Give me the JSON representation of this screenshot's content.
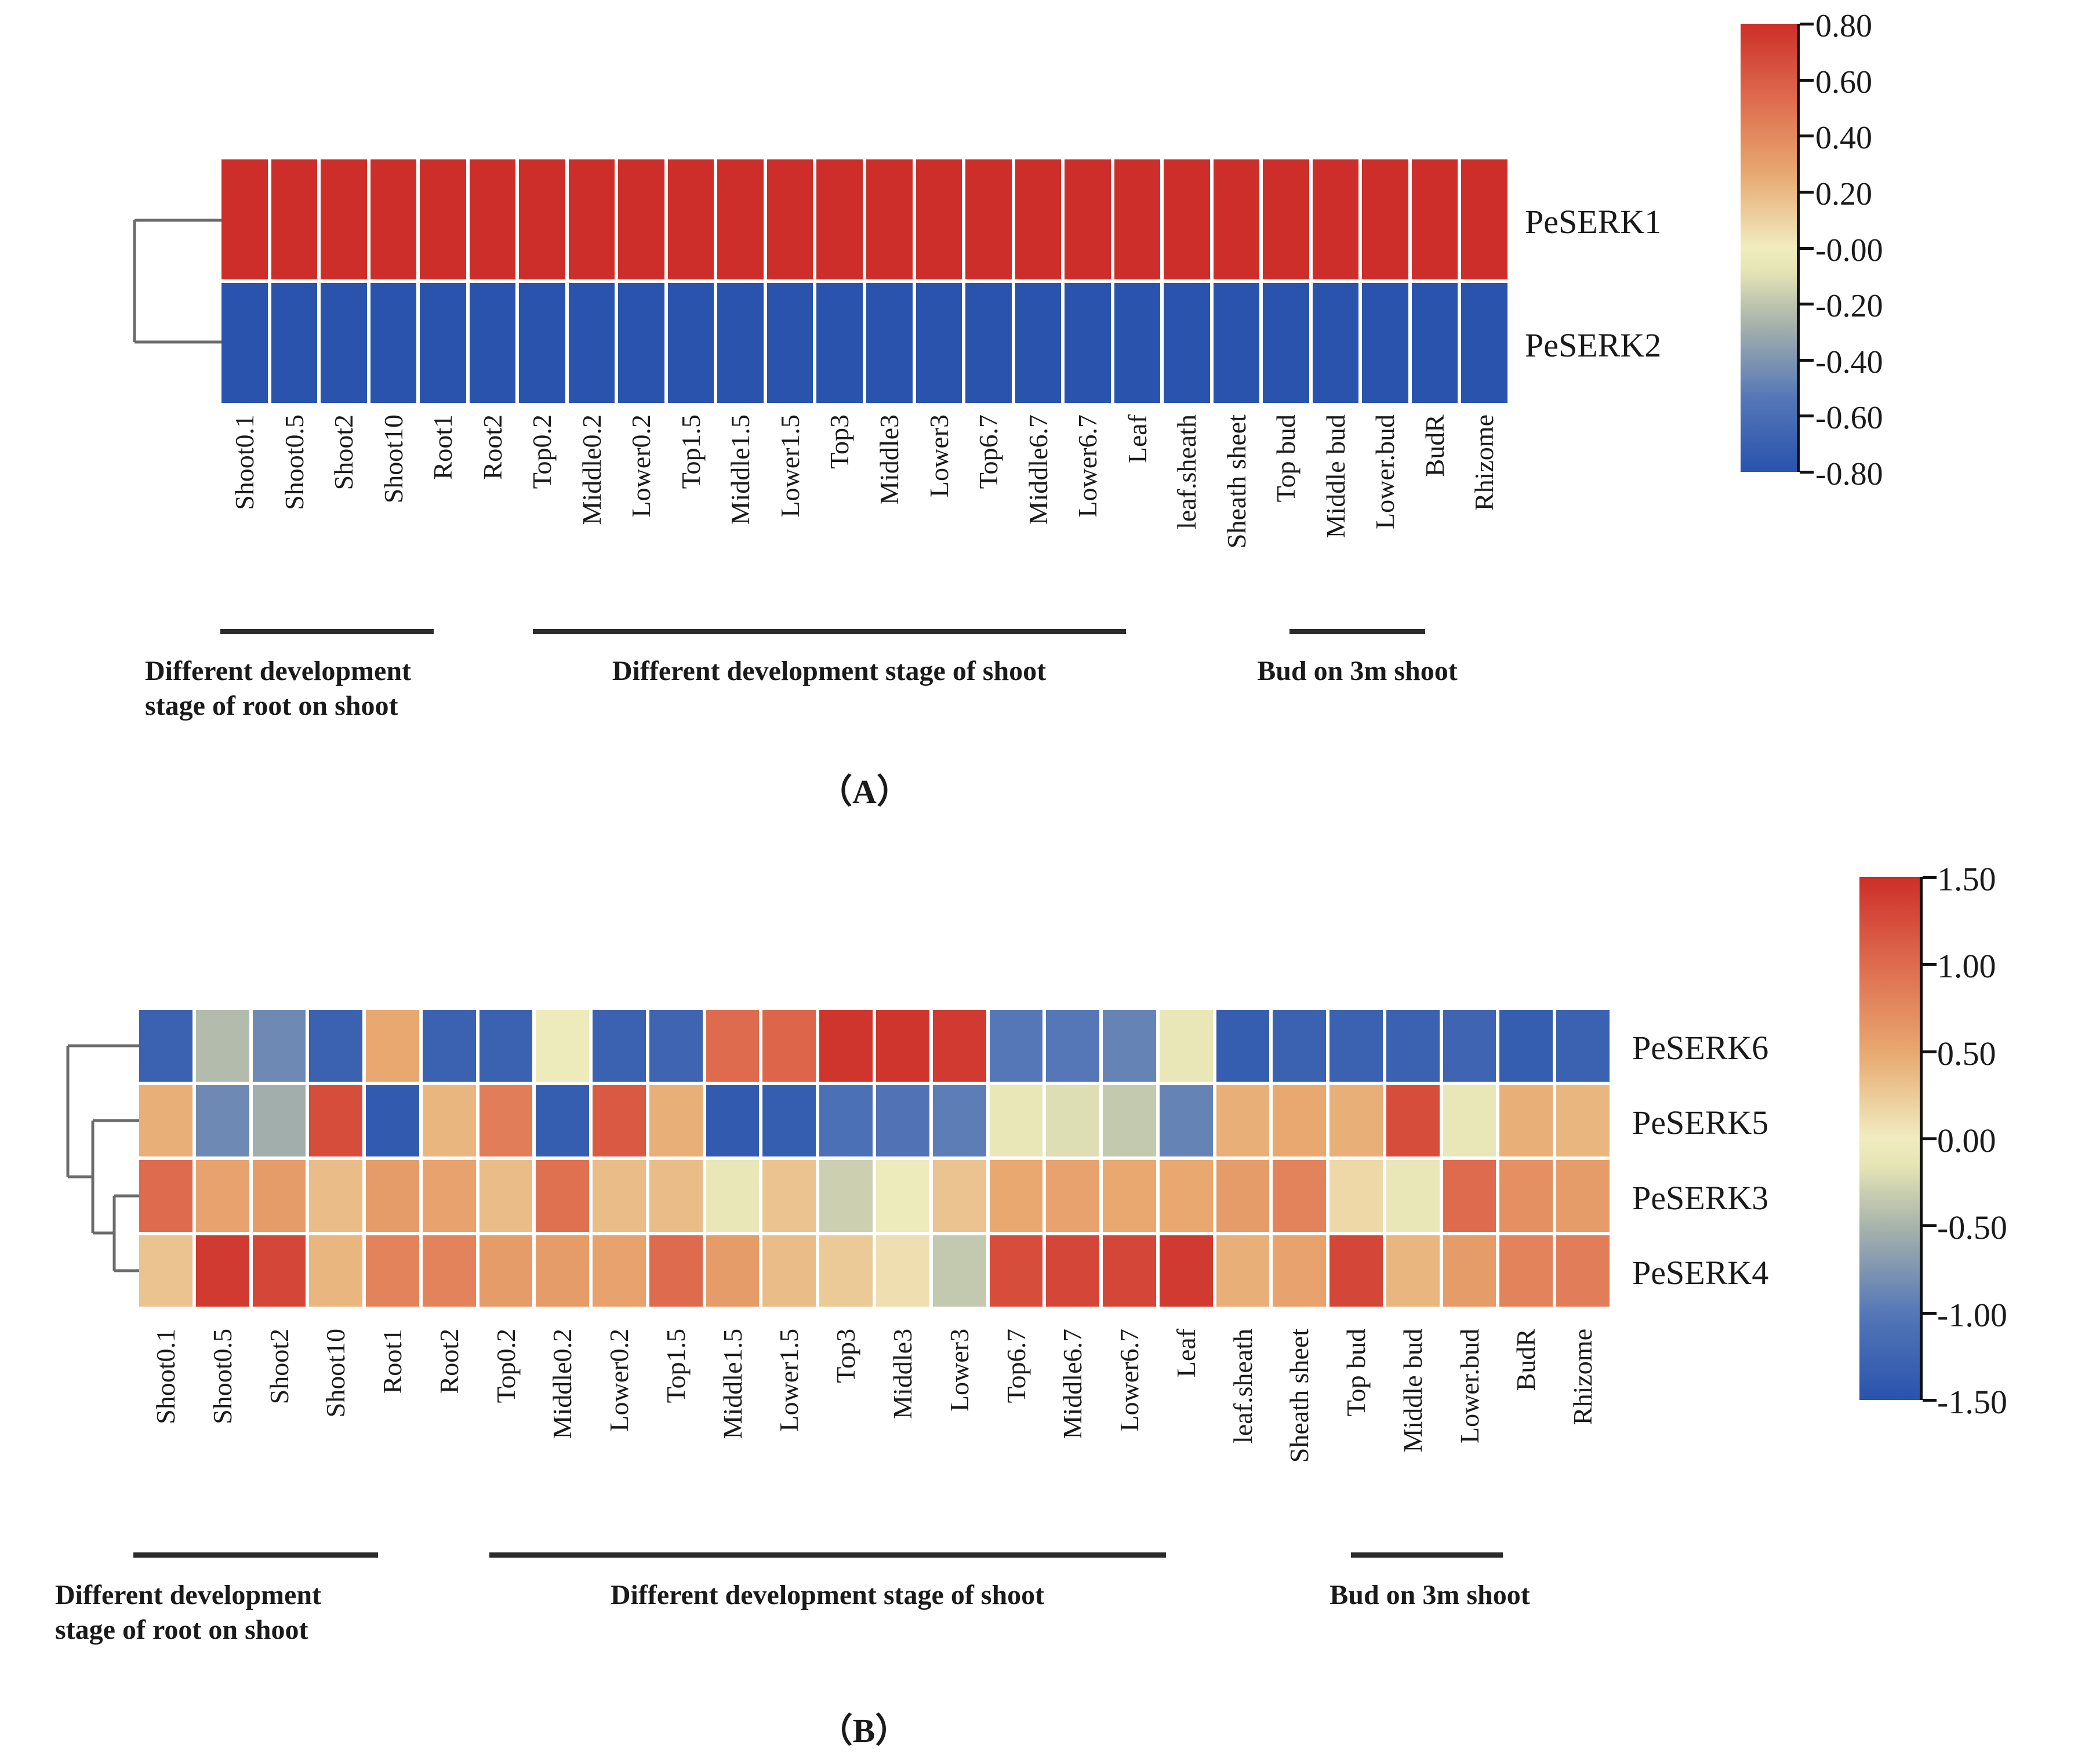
{
  "figure_title": "",
  "colormap": {
    "anchors": [
      {
        "t": -1.0,
        "c": "#2953ad"
      },
      {
        "t": -0.667,
        "c": "#5577b7"
      },
      {
        "t": -0.333,
        "c": "#a9b4ab"
      },
      {
        "t": -0.1,
        "c": "#e6e5b4"
      },
      {
        "t": 0.0,
        "c": "#f0ecc0"
      },
      {
        "t": 0.333,
        "c": "#e8a870"
      },
      {
        "t": 0.667,
        "c": "#de6b4e"
      },
      {
        "t": 1.0,
        "c": "#cd2e29"
      }
    ]
  },
  "chart_data": [
    {
      "id": "A",
      "type": "heatmap",
      "caption": "（A）",
      "rows": [
        "PeSERK1",
        "PeSERK2"
      ],
      "columns": [
        "Shoot0.1",
        "Shoot0.5",
        "Shoot2",
        "Shoot10",
        "Root1",
        "Root2",
        "Top0.2",
        "Middle0.2",
        "Lower0.2",
        "Top1.5",
        "Middle1.5",
        "Lower1.5",
        "Top3",
        "Middle3",
        "Lower3",
        "Top6.7",
        "Middle6.7",
        "Lower6.7",
        "Leaf",
        "leaf.sheath",
        "Sheath sheet",
        "Top bud",
        "Middle bud",
        "Lower.bud",
        "BudR",
        "Rhizome"
      ],
      "values": [
        [
          0.8,
          0.8,
          0.8,
          0.8,
          0.8,
          0.8,
          0.8,
          0.8,
          0.8,
          0.8,
          0.8,
          0.8,
          0.8,
          0.8,
          0.8,
          0.8,
          0.8,
          0.8,
          0.8,
          0.8,
          0.8,
          0.8,
          0.8,
          0.8,
          0.8,
          0.8
        ],
        [
          -0.8,
          -0.8,
          -0.8,
          -0.8,
          -0.8,
          -0.8,
          -0.8,
          -0.8,
          -0.8,
          -0.8,
          -0.8,
          -0.8,
          -0.8,
          -0.8,
          -0.8,
          -0.8,
          -0.8,
          -0.8,
          -0.8,
          -0.8,
          -0.8,
          -0.8,
          -0.8,
          -0.8,
          -0.8,
          -0.8
        ]
      ],
      "vmax": 0.8,
      "colorbar_ticks": [
        "0.80",
        "0.60",
        "0.40",
        "0.20",
        "-0.00",
        "-0.20",
        "-0.40",
        "-0.60",
        "-0.80"
      ],
      "clustering": "(PeSERK1,PeSERK2)",
      "groups": [
        {
          "label": "Different development\nstage of root on shoot"
        },
        {
          "label": "Different development stage of shoot"
        },
        {
          "label": "Bud on 3m shoot"
        }
      ],
      "grid": false,
      "legend_position": "right"
    },
    {
      "id": "B",
      "type": "heatmap",
      "caption": "（B）",
      "rows": [
        "PeSERK6",
        "PeSERK5",
        "PeSERK3",
        "PeSERK4"
      ],
      "columns": [
        "Shoot0.1",
        "Shoot0.5",
        "Shoot2",
        "Shoot10",
        "Root1",
        "Root2",
        "Top0.2",
        "Middle0.2",
        "Lower0.2",
        "Top1.5",
        "Middle1.5",
        "Lower1.5",
        "Top3",
        "Middle3",
        "Lower3",
        "Top6.7",
        "Middle6.7",
        "Lower6.7",
        "Leaf",
        "leaf.sheath",
        "Sheath sheet",
        "Top bud",
        "Middle bud",
        "Lower.bud",
        "BudR",
        "Rhizome"
      ],
      "values": [
        [
          -1.3,
          -0.45,
          -0.85,
          -1.3,
          0.5,
          -1.3,
          -1.3,
          -0.05,
          -1.3,
          -1.25,
          1.0,
          1.05,
          1.45,
          1.45,
          1.4,
          -1.0,
          -1.0,
          -0.9,
          -0.1,
          -1.35,
          -1.3,
          -1.3,
          -1.3,
          -1.25,
          -1.35,
          -1.3
        ],
        [
          0.45,
          -0.85,
          -0.55,
          1.25,
          -1.4,
          0.4,
          0.85,
          -1.35,
          1.15,
          0.45,
          -1.4,
          -1.35,
          -1.1,
          -1.05,
          -0.95,
          -0.1,
          -0.2,
          -0.35,
          -0.9,
          0.45,
          0.5,
          0.45,
          1.25,
          -0.1,
          0.45,
          0.4
        ],
        [
          1.0,
          0.55,
          0.6,
          0.35,
          0.6,
          0.55,
          0.35,
          0.95,
          0.35,
          0.35,
          -0.1,
          0.3,
          -0.3,
          -0.05,
          0.3,
          0.5,
          0.55,
          0.5,
          0.5,
          0.6,
          0.8,
          0.15,
          -0.1,
          1.0,
          0.7,
          0.6
        ],
        [
          0.3,
          1.4,
          1.3,
          0.4,
          0.8,
          0.8,
          0.6,
          0.6,
          0.55,
          1.0,
          0.6,
          0.35,
          0.25,
          0.1,
          -0.35,
          1.25,
          1.3,
          1.3,
          1.4,
          0.45,
          0.55,
          1.3,
          0.4,
          0.6,
          0.8,
          0.85
        ]
      ],
      "vmax": 1.5,
      "colorbar_ticks": [
        "1.50",
        "1.00",
        "0.50",
        "0.00",
        "-0.50",
        "-1.00",
        "-1.50"
      ],
      "clustering": "(PeSERK6,(PeSERK5,(PeSERK3,PeSERK4)))",
      "groups": [
        {
          "label": "Different development\nstage of root on shoot"
        },
        {
          "label": "Different development stage of shoot"
        },
        {
          "label": "Bud on 3m shoot"
        }
      ],
      "grid": false,
      "legend_position": "right"
    }
  ]
}
